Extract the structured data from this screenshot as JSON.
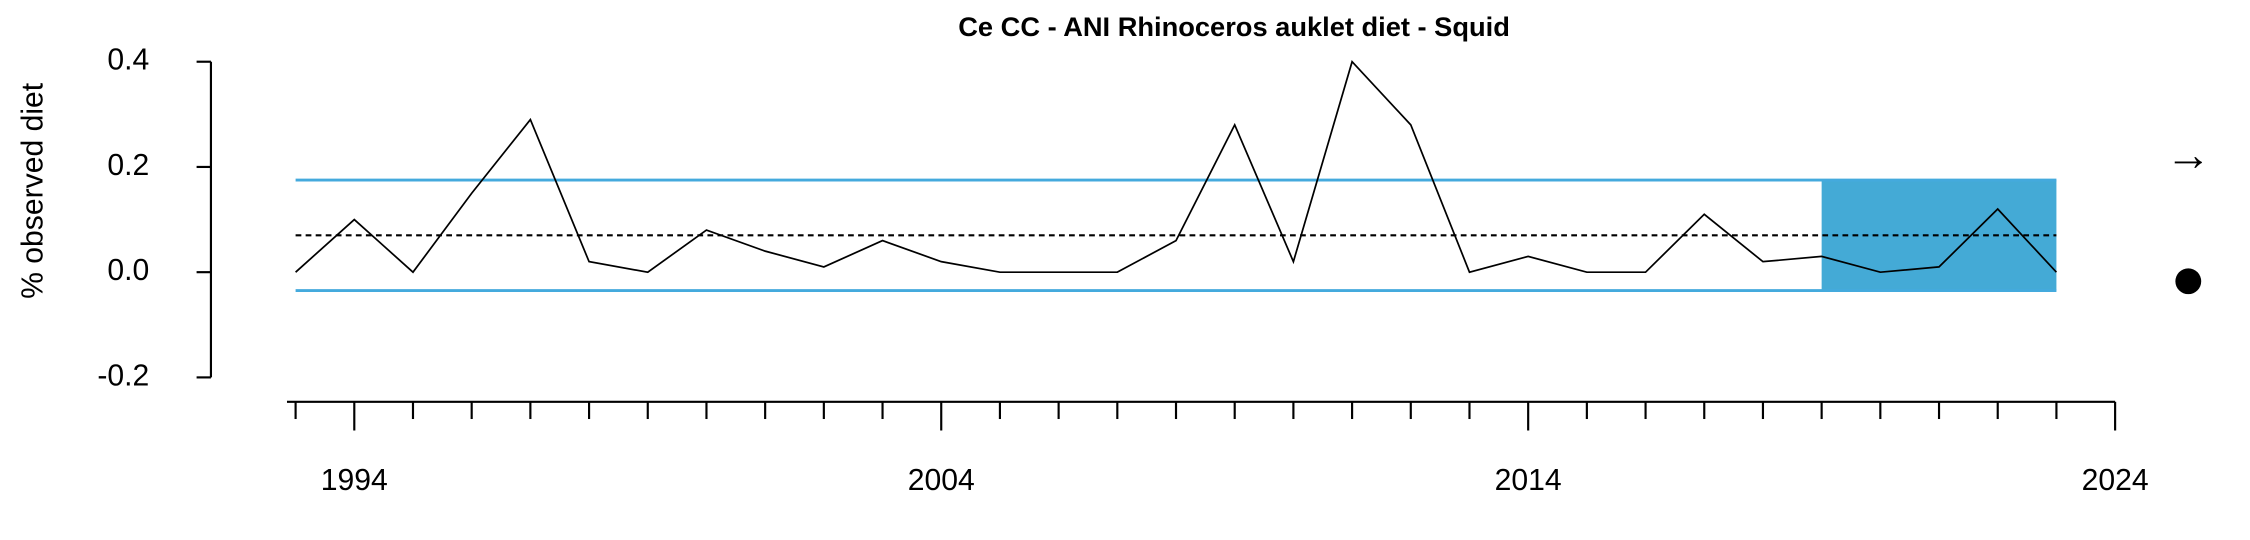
{
  "chart_data": {
    "type": "line",
    "title": "Ce CC - ANI Rhinoceros auklet diet - Squid",
    "y_label": "% observed diet",
    "x": [
      1993,
      1994,
      1995,
      1996,
      1997,
      1998,
      1999,
      2000,
      2001,
      2002,
      2003,
      2004,
      2005,
      2006,
      2007,
      2008,
      2009,
      2010,
      2011,
      2012,
      2013,
      2014,
      2015,
      2016,
      2017,
      2018,
      2019,
      2020,
      2021,
      2022,
      2023
    ],
    "values": [
      0.0,
      0.1,
      0.0,
      0.15,
      0.29,
      0.02,
      0.0,
      0.08,
      0.04,
      0.01,
      0.06,
      0.02,
      0.0,
      0.0,
      0.0,
      0.06,
      0.28,
      0.02,
      0.4,
      0.28,
      0.0,
      0.03,
      0.0,
      0.0,
      0.11,
      0.02,
      0.03,
      0.0,
      0.01,
      0.12,
      0.0
    ],
    "color": "#000000",
    "mean": 0.07,
    "sd_upper": 0.175,
    "sd_lower": -0.035,
    "sd_color": "#44aadd",
    "highlight_start": 2019,
    "highlight_end": 2023,
    "highlight_color": "#44aad6",
    "xlim": [
      1993,
      2024
    ],
    "xticks": [
      1994,
      2004,
      2014,
      2024
    ],
    "xminorticks": [
      1993,
      1995,
      1996,
      1997,
      1998,
      1999,
      2000,
      2001,
      2002,
      2003,
      2005,
      2006,
      2007,
      2008,
      2009,
      2010,
      2011,
      2012,
      2013,
      2015,
      2016,
      2017,
      2018,
      2019,
      2020,
      2021,
      2022,
      2023
    ],
    "ylim": [
      -0.2,
      0.4
    ],
    "yticks": [
      {
        "value": -0.2,
        "label": "-0.2"
      },
      {
        "value": 0,
        "label": "0.0"
      },
      0.2,
      0.4
    ],
    "trend_symbol": "→"
  }
}
